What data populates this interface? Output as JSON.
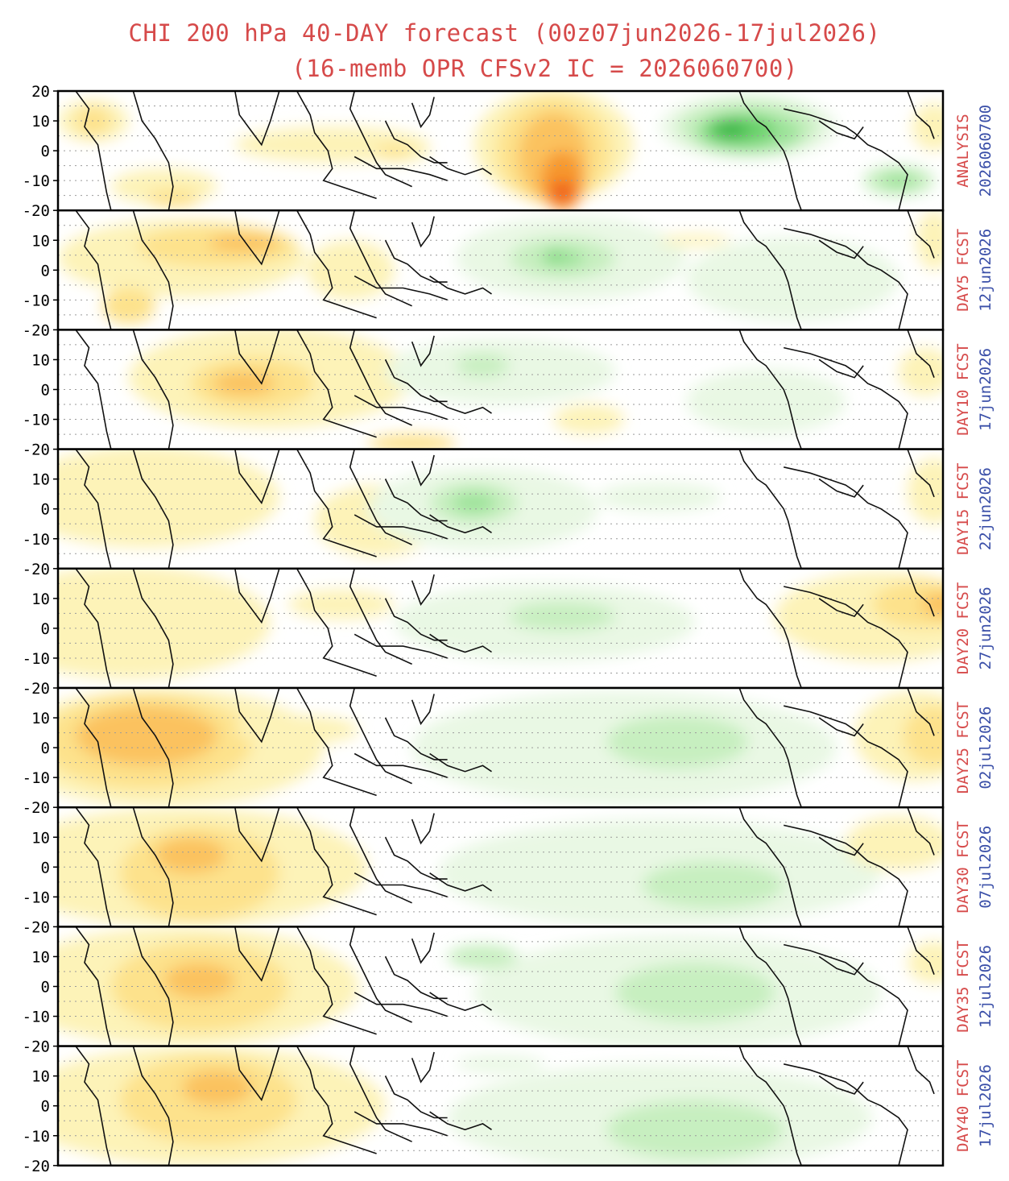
{
  "header": {
    "title_line1": "CHI 200 hPa 40-DAY forecast (00z07jun2026-17jul2026)",
    "title_line2": "(16-memb OPR CFSv2 IC = 2026060700)"
  },
  "chart_data": {
    "type": "heatmap",
    "title": "CHI 200 hPa 40-DAY forecast (00z07jun2026-17jul2026)",
    "subtitle": "(16-memb OPR CFSv2 IC = 2026060700)",
    "y_ticks": [
      "20",
      "10",
      "0",
      "-10",
      "-20"
    ],
    "ylim": [
      -20,
      20
    ],
    "grid": "dotted latitude lines every 5 degrees",
    "colors": {
      "title": "#d64a4a",
      "panel_label": "#d64a4a",
      "panel_date": "#3a4fa8",
      "positive": [
        "#fdf3b8",
        "#fde28c",
        "#fbc25e",
        "#f7982e",
        "#f0641c",
        "#e24a10"
      ],
      "negative": [
        "#e9f8e4",
        "#c7efc0",
        "#9de39a",
        "#6ad26c",
        "#3cb84a",
        "#1f9a30"
      ]
    },
    "panels": [
      {
        "label": "ANALYSIS",
        "date": "2026060700",
        "blobs": [
          {
            "s": 1,
            "x": 4,
            "y": 10,
            "w": 8,
            "h": 14
          },
          {
            "s": 2,
            "x": 4,
            "y": 10,
            "w": 4,
            "h": 10
          },
          {
            "s": 1,
            "x": 12,
            "y": -12,
            "w": 12,
            "h": 12
          },
          {
            "s": 2,
            "x": 13,
            "y": -16,
            "w": 6,
            "h": 6
          },
          {
            "s": 1,
            "x": 31,
            "y": 2,
            "w": 22,
            "h": 12
          },
          {
            "s": 1,
            "x": 38,
            "y": 0,
            "w": 8,
            "h": 8
          },
          {
            "s": 2,
            "x": 38,
            "y": 0,
            "w": 4,
            "h": 4
          },
          {
            "s": 1,
            "x": 56,
            "y": 2,
            "w": 18,
            "h": 38
          },
          {
            "s": 2,
            "x": 56,
            "y": 0,
            "w": 13,
            "h": 36
          },
          {
            "s": 3,
            "x": 56,
            "y": -2,
            "w": 8,
            "h": 30
          },
          {
            "s": 4,
            "x": 57,
            "y": -10,
            "w": 5,
            "h": 20
          },
          {
            "s": 5,
            "x": 57,
            "y": -14,
            "w": 3,
            "h": 8
          },
          {
            "s": -1,
            "x": 78,
            "y": 8,
            "w": 20,
            "h": 22
          },
          {
            "s": -2,
            "x": 78,
            "y": 8,
            "w": 16,
            "h": 18
          },
          {
            "s": -3,
            "x": 78,
            "y": 6,
            "w": 12,
            "h": 14
          },
          {
            "s": -4,
            "x": 77,
            "y": 7,
            "w": 8,
            "h": 10
          },
          {
            "s": -5,
            "x": 76,
            "y": 7,
            "w": 4,
            "h": 6
          },
          {
            "s": -2,
            "x": 95,
            "y": -10,
            "w": 8,
            "h": 10
          },
          {
            "s": -3,
            "x": 95,
            "y": -10,
            "w": 4,
            "h": 5
          },
          {
            "s": 1,
            "x": 99,
            "y": 8,
            "w": 5,
            "h": 16
          }
        ]
      },
      {
        "label": "DAY5 FCST",
        "date": "12jun2026",
        "blobs": [
          {
            "s": 1,
            "x": 14,
            "y": 4,
            "w": 28,
            "h": 26
          },
          {
            "s": 2,
            "x": 18,
            "y": 8,
            "w": 18,
            "h": 14
          },
          {
            "s": 3,
            "x": 21,
            "y": 9,
            "w": 8,
            "h": 6
          },
          {
            "s": 2,
            "x": 8,
            "y": -12,
            "w": 6,
            "h": 12
          },
          {
            "s": 1,
            "x": 33,
            "y": 0,
            "w": 10,
            "h": 20
          },
          {
            "s": -1,
            "x": 58,
            "y": 4,
            "w": 26,
            "h": 28
          },
          {
            "s": -2,
            "x": 57,
            "y": 4,
            "w": 12,
            "h": 14
          },
          {
            "s": -3,
            "x": 57,
            "y": 4,
            "w": 5,
            "h": 6
          },
          {
            "s": -4,
            "x": 56,
            "y": 5,
            "w": 2,
            "h": 3
          },
          {
            "s": -1,
            "x": 83,
            "y": -3,
            "w": 24,
            "h": 28
          },
          {
            "s": 1,
            "x": 72,
            "y": 10,
            "w": 8,
            "h": 4
          },
          {
            "s": 1,
            "x": 99,
            "y": 10,
            "w": 4,
            "h": 20
          }
        ]
      },
      {
        "label": "DAY10 FCST",
        "date": "17jun2026",
        "blobs": [
          {
            "s": 1,
            "x": 24,
            "y": 4,
            "w": 32,
            "h": 34
          },
          {
            "s": 2,
            "x": 22,
            "y": 2,
            "w": 14,
            "h": 18
          },
          {
            "s": 3,
            "x": 21,
            "y": 2,
            "w": 7,
            "h": 8
          },
          {
            "s": -1,
            "x": 50,
            "y": 6,
            "w": 26,
            "h": 22
          },
          {
            "s": -2,
            "x": 48,
            "y": 8,
            "w": 6,
            "h": 8
          },
          {
            "s": 1,
            "x": 60,
            "y": -10,
            "w": 8,
            "h": 10
          },
          {
            "s": -1,
            "x": 80,
            "y": -4,
            "w": 18,
            "h": 22
          },
          {
            "s": 1,
            "x": 98,
            "y": 6,
            "w": 6,
            "h": 16
          },
          {
            "s": 2,
            "x": 40,
            "y": -18,
            "w": 10,
            "h": 6
          }
        ]
      },
      {
        "label": "DAY15 FCST",
        "date": "22jun2026",
        "blobs": [
          {
            "s": 1,
            "x": 10,
            "y": 4,
            "w": 30,
            "h": 34
          },
          {
            "s": 1,
            "x": 36,
            "y": -4,
            "w": 14,
            "h": 24
          },
          {
            "s": -1,
            "x": 48,
            "y": 0,
            "w": 26,
            "h": 28
          },
          {
            "s": -2,
            "x": 47,
            "y": 2,
            "w": 10,
            "h": 14
          },
          {
            "s": -3,
            "x": 47,
            "y": 2,
            "w": 5,
            "h": 7
          },
          {
            "s": -1,
            "x": 68,
            "y": 4,
            "w": 14,
            "h": 10
          },
          {
            "s": 1,
            "x": 99,
            "y": 6,
            "w": 6,
            "h": 22
          }
        ]
      },
      {
        "label": "DAY20 FCST",
        "date": "27jun2026",
        "blobs": [
          {
            "s": 1,
            "x": 8,
            "y": 2,
            "w": 32,
            "h": 38
          },
          {
            "s": 1,
            "x": 32,
            "y": 8,
            "w": 12,
            "h": 10
          },
          {
            "s": -1,
            "x": 55,
            "y": 2,
            "w": 34,
            "h": 26
          },
          {
            "s": -2,
            "x": 57,
            "y": 4,
            "w": 12,
            "h": 10
          },
          {
            "s": 1,
            "x": 93,
            "y": 4,
            "w": 24,
            "h": 30
          },
          {
            "s": 2,
            "x": 98,
            "y": 8,
            "w": 12,
            "h": 16
          },
          {
            "s": 3,
            "x": 100,
            "y": 8,
            "w": 5,
            "h": 8
          }
        ]
      },
      {
        "label": "DAY25 FCST",
        "date": "02jul2026",
        "blobs": [
          {
            "s": 1,
            "x": 12,
            "y": 0,
            "w": 36,
            "h": 40
          },
          {
            "s": 2,
            "x": 10,
            "y": 2,
            "w": 24,
            "h": 32
          },
          {
            "s": 3,
            "x": 10,
            "y": 4,
            "w": 16,
            "h": 20
          },
          {
            "s": 1,
            "x": 27,
            "y": 6,
            "w": 14,
            "h": 10
          },
          {
            "s": -1,
            "x": 64,
            "y": 0,
            "w": 48,
            "h": 38
          },
          {
            "s": -2,
            "x": 70,
            "y": 2,
            "w": 16,
            "h": 18
          },
          {
            "s": 1,
            "x": 97,
            "y": 4,
            "w": 14,
            "h": 30
          },
          {
            "s": 2,
            "x": 99,
            "y": 4,
            "w": 7,
            "h": 20
          }
        ]
      },
      {
        "label": "DAY30 FCST",
        "date": "07jul2026",
        "blobs": [
          {
            "s": 1,
            "x": 14,
            "y": 0,
            "w": 42,
            "h": 40
          },
          {
            "s": 2,
            "x": 16,
            "y": -2,
            "w": 18,
            "h": 32
          },
          {
            "s": 3,
            "x": 15,
            "y": 4,
            "w": 8,
            "h": 12
          },
          {
            "s": -1,
            "x": 68,
            "y": -2,
            "w": 50,
            "h": 36
          },
          {
            "s": -2,
            "x": 74,
            "y": -6,
            "w": 16,
            "h": 16
          },
          {
            "s": 1,
            "x": 95,
            "y": 8,
            "w": 12,
            "h": 18
          }
        ]
      },
      {
        "label": "DAY35 FCST",
        "date": "12jul2026",
        "blobs": [
          {
            "s": 1,
            "x": 14,
            "y": 0,
            "w": 40,
            "h": 40
          },
          {
            "s": 2,
            "x": 16,
            "y": 0,
            "w": 20,
            "h": 30
          },
          {
            "s": 3,
            "x": 16,
            "y": 2,
            "w": 8,
            "h": 12
          },
          {
            "s": -1,
            "x": 70,
            "y": -2,
            "w": 46,
            "h": 38
          },
          {
            "s": -2,
            "x": 72,
            "y": -2,
            "w": 18,
            "h": 20
          },
          {
            "s": -2,
            "x": 48,
            "y": 10,
            "w": 8,
            "h": 8
          },
          {
            "s": 1,
            "x": 99,
            "y": 8,
            "w": 6,
            "h": 14
          }
        ]
      },
      {
        "label": "DAY40 FCST",
        "date": "17jul2026",
        "blobs": [
          {
            "s": 1,
            "x": 16,
            "y": 0,
            "w": 42,
            "h": 40
          },
          {
            "s": 2,
            "x": 17,
            "y": 2,
            "w": 20,
            "h": 30
          },
          {
            "s": 3,
            "x": 18,
            "y": 6,
            "w": 8,
            "h": 12
          },
          {
            "s": -1,
            "x": 68,
            "y": -4,
            "w": 48,
            "h": 36
          },
          {
            "s": -2,
            "x": 72,
            "y": -8,
            "w": 20,
            "h": 20
          },
          {
            "s": -1,
            "x": 50,
            "y": 14,
            "w": 10,
            "h": 6
          }
        ]
      }
    ]
  }
}
